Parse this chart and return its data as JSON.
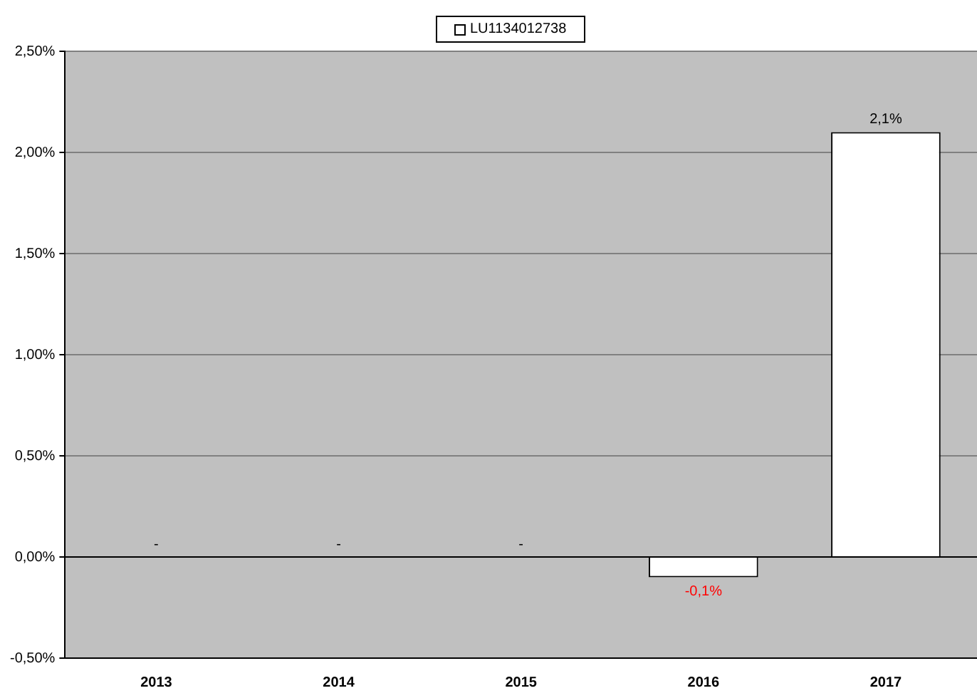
{
  "chart_data": {
    "type": "bar",
    "categories": [
      "2013",
      "2014",
      "2015",
      "2016",
      "2017"
    ],
    "series": [
      {
        "name": "LU1134012738",
        "color": "#ffffff",
        "values": [
          null,
          null,
          null,
          -0.1,
          2.1
        ],
        "value_labels": [
          "-",
          "-",
          "-",
          "-0,1%",
          "2,1%"
        ]
      }
    ],
    "ylim": [
      -0.5,
      2.5
    ],
    "yticks": [
      {
        "value": -0.5,
        "label": "-0,50%"
      },
      {
        "value": 0,
        "label": "0,00%"
      },
      {
        "value": 0.5,
        "label": "0,50%"
      },
      {
        "value": 1,
        "label": "1,00%"
      },
      {
        "value": 1.5,
        "label": "1,50%"
      },
      {
        "value": 2,
        "label": "2,00%"
      },
      {
        "value": 2.5,
        "label": "2,50%"
      }
    ],
    "grid": "y",
    "legend": "top"
  }
}
